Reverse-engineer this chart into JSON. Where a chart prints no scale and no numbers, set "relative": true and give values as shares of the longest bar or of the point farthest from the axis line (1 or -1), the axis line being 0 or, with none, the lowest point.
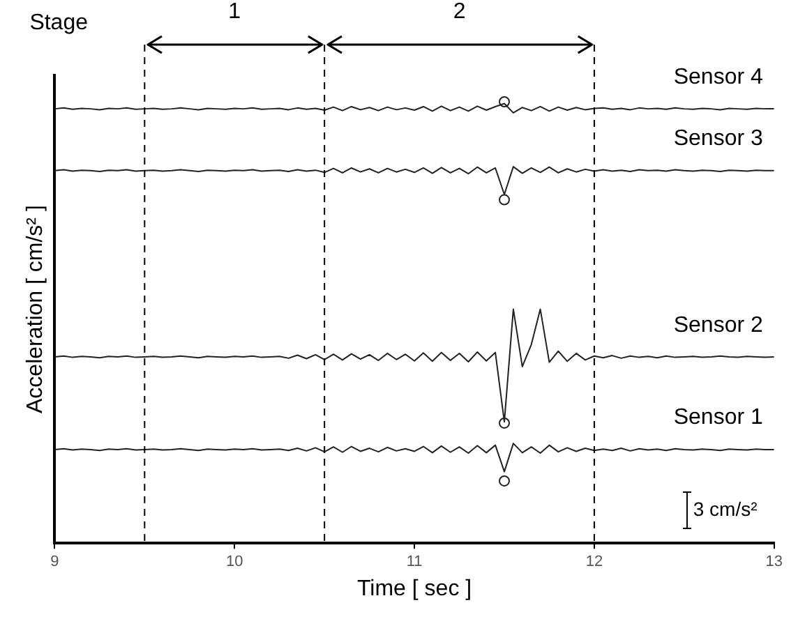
{
  "chart_data": {
    "type": "line",
    "relative": true,
    "xlabel": "Time [ sec ]",
    "ylabel": "Acceleration [ cm/s² ]",
    "xlim": [
      9,
      13
    ],
    "xticks": [
      9,
      10,
      11,
      12,
      13
    ],
    "grid": false,
    "legend": false,
    "marker": "none",
    "line_style": "solid",
    "annotations": [
      "Stage",
      "1",
      "2",
      "3 cm/s²"
    ],
    "ref_lines": [
      {
        "axis": "x",
        "value": 9.5,
        "line_style": "dashed"
      },
      {
        "axis": "x",
        "value": 10.5,
        "line_style": "dashed"
      },
      {
        "axis": "x",
        "value": 12,
        "line_style": "dashed"
      }
    ],
    "x": [
      9,
      9.05,
      9.1,
      9.15,
      9.2,
      9.25,
      9.3,
      9.35,
      9.4,
      9.45,
      9.5,
      9.55,
      9.6,
      9.65,
      9.7,
      9.75,
      9.8,
      9.85,
      9.9,
      9.95,
      10,
      10.05,
      10.1,
      10.15,
      10.2,
      10.25,
      10.3,
      10.35,
      10.4,
      10.45,
      10.5,
      10.55,
      10.6,
      10.65,
      10.7,
      10.75,
      10.8,
      10.85,
      10.9,
      10.95,
      11,
      11.05,
      11.1,
      11.15,
      11.2,
      11.25,
      11.3,
      11.35,
      11.4,
      11.45,
      11.5,
      11.55,
      11.6,
      11.65,
      11.7,
      11.75,
      11.8,
      11.85,
      11.9,
      11.95,
      12,
      12.05,
      12.1,
      12.15,
      12.2,
      12.25,
      12.3,
      12.35,
      12.4,
      12.45,
      12.5,
      12.55,
      12.6,
      12.65,
      12.7,
      12.75,
      12.8,
      12.85,
      12.9,
      12.95,
      13
    ],
    "series": [
      {
        "name": "Sensor 4",
        "color": "#222222",
        "values": [
          0.984,
          0.986,
          0.983,
          0.985,
          0.984,
          0.982,
          0.985,
          0.984,
          0.986,
          0.983,
          0.984,
          0.985,
          0.983,
          0.984,
          0.986,
          0.984,
          0.982,
          0.985,
          0.984,
          0.983,
          0.985,
          0.984,
          0.986,
          0.983,
          0.984,
          0.985,
          0.982,
          0.986,
          0.983,
          0.985,
          0.981,
          0.988,
          0.98,
          0.989,
          0.982,
          0.987,
          0.98,
          0.988,
          0.982,
          0.986,
          0.981,
          0.989,
          0.979,
          0.99,
          0.98,
          0.988,
          0.979,
          0.99,
          0.981,
          0.989,
          0.996,
          0.975,
          0.987,
          0.98,
          0.989,
          0.979,
          0.988,
          0.981,
          0.987,
          0.982,
          0.985,
          0.986,
          0.983,
          0.985,
          0.982,
          0.986,
          0.984,
          0.985,
          0.983,
          0.986,
          0.984,
          0.983,
          0.985,
          0.984,
          0.982,
          0.985,
          0.984,
          0.983,
          0.985,
          0.984,
          0.984
        ]
      },
      {
        "name": "Sensor 3",
        "color": "#222222",
        "values": [
          0.844,
          0.846,
          0.843,
          0.845,
          0.844,
          0.842,
          0.845,
          0.844,
          0.846,
          0.843,
          0.844,
          0.845,
          0.843,
          0.844,
          0.846,
          0.844,
          0.842,
          0.845,
          0.844,
          0.843,
          0.845,
          0.844,
          0.846,
          0.843,
          0.844,
          0.845,
          0.842,
          0.846,
          0.843,
          0.845,
          0.84,
          0.849,
          0.839,
          0.85,
          0.841,
          0.848,
          0.839,
          0.849,
          0.841,
          0.847,
          0.84,
          0.85,
          0.838,
          0.851,
          0.839,
          0.849,
          0.837,
          0.852,
          0.839,
          0.85,
          0.79,
          0.853,
          0.838,
          0.85,
          0.84,
          0.852,
          0.839,
          0.848,
          0.841,
          0.847,
          0.843,
          0.846,
          0.843,
          0.845,
          0.842,
          0.846,
          0.844,
          0.845,
          0.843,
          0.846,
          0.844,
          0.843,
          0.845,
          0.844,
          0.842,
          0.845,
          0.844,
          0.843,
          0.845,
          0.844,
          0.844
        ]
      },
      {
        "name": "Sensor 2",
        "color": "#222222",
        "values": [
          0.422,
          0.424,
          0.421,
          0.423,
          0.422,
          0.42,
          0.423,
          0.422,
          0.424,
          0.421,
          0.422,
          0.423,
          0.421,
          0.422,
          0.424,
          0.422,
          0.42,
          0.423,
          0.422,
          0.421,
          0.423,
          0.422,
          0.424,
          0.421,
          0.422,
          0.423,
          0.419,
          0.426,
          0.418,
          0.427,
          0.416,
          0.428,
          0.415,
          0.429,
          0.417,
          0.427,
          0.414,
          0.43,
          0.416,
          0.428,
          0.413,
          0.431,
          0.412,
          0.432,
          0.414,
          0.43,
          0.411,
          0.433,
          0.413,
          0.432,
          0.275,
          0.53,
          0.4,
          0.45,
          0.53,
          0.41,
          0.435,
          0.412,
          0.43,
          0.415,
          0.424,
          0.42,
          0.425,
          0.419,
          0.424,
          0.421,
          0.423,
          0.42,
          0.424,
          0.421,
          0.422,
          0.423,
          0.421,
          0.422,
          0.424,
          0.422,
          0.421,
          0.423,
          0.422,
          0.421,
          0.422
        ]
      },
      {
        "name": "Sensor 1",
        "color": "#222222",
        "values": [
          0.212,
          0.214,
          0.211,
          0.213,
          0.212,
          0.21,
          0.213,
          0.212,
          0.214,
          0.211,
          0.212,
          0.213,
          0.211,
          0.212,
          0.214,
          0.212,
          0.21,
          0.213,
          0.212,
          0.211,
          0.213,
          0.212,
          0.214,
          0.211,
          0.212,
          0.213,
          0.21,
          0.215,
          0.209,
          0.216,
          0.207,
          0.218,
          0.206,
          0.219,
          0.208,
          0.215,
          0.207,
          0.217,
          0.209,
          0.214,
          0.208,
          0.219,
          0.205,
          0.22,
          0.206,
          0.218,
          0.204,
          0.221,
          0.205,
          0.222,
          0.162,
          0.226,
          0.205,
          0.218,
          0.204,
          0.222,
          0.207,
          0.216,
          0.208,
          0.215,
          0.21,
          0.213,
          0.21,
          0.215,
          0.209,
          0.214,
          0.211,
          0.213,
          0.21,
          0.214,
          0.212,
          0.211,
          0.213,
          0.212,
          0.21,
          0.213,
          0.212,
          0.211,
          0.213,
          0.212,
          0.212
        ]
      },
      {
        "type": "scatter",
        "marker": "circle",
        "color": "#222222",
        "values": [
          null,
          null,
          null,
          null,
          null,
          null,
          null,
          null,
          null,
          null,
          null,
          null,
          null,
          null,
          null,
          null,
          null,
          null,
          null,
          null,
          null,
          null,
          null,
          null,
          null,
          null,
          null,
          null,
          null,
          null,
          null,
          null,
          null,
          null,
          null,
          null,
          null,
          null,
          null,
          null,
          null,
          null,
          null,
          null,
          null,
          null,
          null,
          null,
          null,
          null,
          1.0,
          null,
          null,
          null,
          null,
          null,
          null,
          null,
          null,
          null,
          null,
          null,
          null,
          null,
          null,
          null,
          null,
          null,
          null,
          null,
          null,
          null,
          null,
          null,
          null,
          null,
          null,
          null,
          null,
          null,
          null
        ]
      },
      {
        "type": "scatter",
        "marker": "circle",
        "color": "#222222",
        "values": [
          null,
          null,
          null,
          null,
          null,
          null,
          null,
          null,
          null,
          null,
          null,
          null,
          null,
          null,
          null,
          null,
          null,
          null,
          null,
          null,
          null,
          null,
          null,
          null,
          null,
          null,
          null,
          null,
          null,
          null,
          null,
          null,
          null,
          null,
          null,
          null,
          null,
          null,
          null,
          null,
          null,
          null,
          null,
          null,
          null,
          null,
          null,
          null,
          null,
          null,
          0.778,
          null,
          null,
          null,
          null,
          null,
          null,
          null,
          null,
          null,
          null,
          null,
          null,
          null,
          null,
          null,
          null,
          null,
          null,
          null,
          null,
          null,
          null,
          null,
          null,
          null,
          null,
          null,
          null,
          null,
          null
        ]
      },
      {
        "type": "scatter",
        "marker": "circle",
        "color": "#222222",
        "values": [
          null,
          null,
          null,
          null,
          null,
          null,
          null,
          null,
          null,
          null,
          null,
          null,
          null,
          null,
          null,
          null,
          null,
          null,
          null,
          null,
          null,
          null,
          null,
          null,
          null,
          null,
          null,
          null,
          null,
          null,
          null,
          null,
          null,
          null,
          null,
          null,
          null,
          null,
          null,
          null,
          null,
          null,
          null,
          null,
          null,
          null,
          null,
          null,
          null,
          null,
          0.272,
          null,
          null,
          null,
          null,
          null,
          null,
          null,
          null,
          null,
          null,
          null,
          null,
          null,
          null,
          null,
          null,
          null,
          null,
          null,
          null,
          null,
          null,
          null,
          null,
          null,
          null,
          null,
          null,
          null,
          null
        ]
      },
      {
        "type": "scatter",
        "marker": "circle",
        "color": "#222222",
        "values": [
          null,
          null,
          null,
          null,
          null,
          null,
          null,
          null,
          null,
          null,
          null,
          null,
          null,
          null,
          null,
          null,
          null,
          null,
          null,
          null,
          null,
          null,
          null,
          null,
          null,
          null,
          null,
          null,
          null,
          null,
          null,
          null,
          null,
          null,
          null,
          null,
          null,
          null,
          null,
          null,
          null,
          null,
          null,
          null,
          null,
          null,
          null,
          null,
          null,
          null,
          0.141,
          null,
          null,
          null,
          null,
          null,
          null,
          null,
          null,
          null,
          null,
          null,
          null,
          null,
          null,
          null,
          null,
          null,
          null,
          null,
          null,
          null,
          null,
          null,
          null,
          null,
          null,
          null,
          null,
          null,
          null
        ]
      }
    ]
  }
}
